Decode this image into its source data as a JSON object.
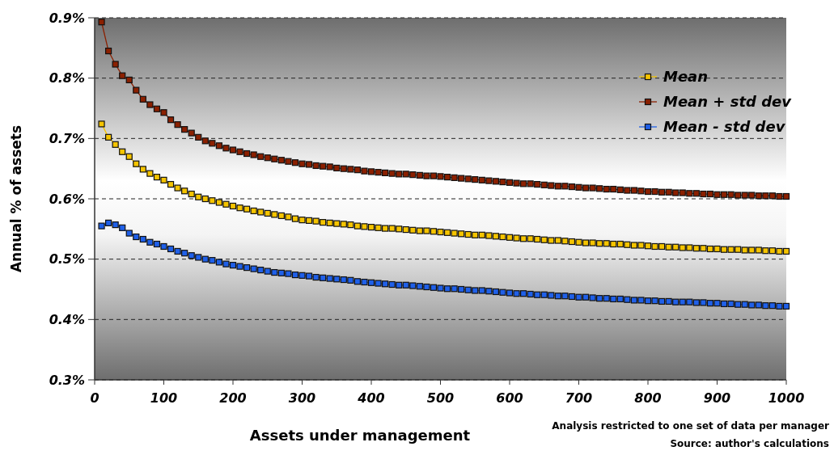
{
  "chart_data": {
    "type": "line",
    "xlabel": "Assets under management",
    "ylabel": "Annual % of assets",
    "x": [
      10,
      20,
      30,
      40,
      50,
      60,
      70,
      80,
      90,
      100,
      110,
      120,
      130,
      140,
      150,
      160,
      170,
      180,
      190,
      200,
      210,
      220,
      230,
      240,
      250,
      260,
      270,
      280,
      290,
      300,
      310,
      320,
      330,
      340,
      350,
      360,
      370,
      380,
      390,
      400,
      410,
      420,
      430,
      440,
      450,
      460,
      470,
      480,
      490,
      500,
      510,
      520,
      530,
      540,
      550,
      560,
      570,
      580,
      590,
      600,
      610,
      620,
      630,
      640,
      650,
      660,
      670,
      680,
      690,
      700,
      710,
      720,
      730,
      740,
      750,
      760,
      770,
      780,
      790,
      800,
      810,
      820,
      830,
      840,
      850,
      860,
      870,
      880,
      890,
      900,
      910,
      920,
      930,
      940,
      950,
      960,
      970,
      980,
      990,
      1000
    ],
    "series": [
      {
        "name": "Mean",
        "color": "#f5c400",
        "values": [
          0.724,
          0.702,
          0.69,
          0.678,
          0.67,
          0.658,
          0.649,
          0.642,
          0.636,
          0.631,
          0.624,
          0.618,
          0.613,
          0.608,
          0.603,
          0.6,
          0.597,
          0.594,
          0.591,
          0.588,
          0.585,
          0.583,
          0.58,
          0.578,
          0.576,
          0.574,
          0.572,
          0.57,
          0.567,
          0.565,
          0.564,
          0.563,
          0.561,
          0.56,
          0.559,
          0.558,
          0.557,
          0.555,
          0.554,
          0.553,
          0.552,
          0.551,
          0.551,
          0.55,
          0.549,
          0.548,
          0.547,
          0.547,
          0.546,
          0.545,
          0.544,
          0.543,
          0.542,
          0.541,
          0.54,
          0.54,
          0.539,
          0.538,
          0.537,
          0.536,
          0.535,
          0.534,
          0.534,
          0.533,
          0.532,
          0.531,
          0.531,
          0.53,
          0.529,
          0.528,
          0.527,
          0.527,
          0.526,
          0.526,
          0.525,
          0.525,
          0.524,
          0.523,
          0.523,
          0.522,
          0.521,
          0.521,
          0.52,
          0.52,
          0.519,
          0.519,
          0.518,
          0.518,
          0.517,
          0.517,
          0.516,
          0.516,
          0.516,
          0.515,
          0.515,
          0.515,
          0.514,
          0.514,
          0.513,
          0.513
        ]
      },
      {
        "name": "Mean + std dev",
        "color": "#8b2000",
        "values": [
          0.893,
          0.845,
          0.823,
          0.804,
          0.797,
          0.78,
          0.765,
          0.756,
          0.749,
          0.743,
          0.731,
          0.723,
          0.715,
          0.709,
          0.702,
          0.696,
          0.692,
          0.688,
          0.684,
          0.681,
          0.678,
          0.675,
          0.673,
          0.67,
          0.668,
          0.666,
          0.664,
          0.662,
          0.66,
          0.658,
          0.657,
          0.655,
          0.654,
          0.653,
          0.651,
          0.65,
          0.649,
          0.648,
          0.646,
          0.645,
          0.644,
          0.643,
          0.642,
          0.641,
          0.641,
          0.64,
          0.639,
          0.638,
          0.638,
          0.637,
          0.636,
          0.635,
          0.634,
          0.633,
          0.632,
          0.631,
          0.63,
          0.629,
          0.628,
          0.627,
          0.626,
          0.625,
          0.625,
          0.624,
          0.623,
          0.622,
          0.621,
          0.621,
          0.62,
          0.619,
          0.618,
          0.618,
          0.617,
          0.616,
          0.616,
          0.615,
          0.614,
          0.614,
          0.613,
          0.612,
          0.612,
          0.611,
          0.611,
          0.61,
          0.61,
          0.609,
          0.609,
          0.608,
          0.608,
          0.607,
          0.607,
          0.607,
          0.606,
          0.606,
          0.606,
          0.605,
          0.605,
          0.605,
          0.604,
          0.604
        ]
      },
      {
        "name": "Mean - std dev",
        "color": "#2060e8",
        "values": [
          0.555,
          0.56,
          0.557,
          0.552,
          0.543,
          0.537,
          0.533,
          0.528,
          0.525,
          0.521,
          0.517,
          0.513,
          0.51,
          0.506,
          0.503,
          0.5,
          0.498,
          0.495,
          0.492,
          0.49,
          0.488,
          0.486,
          0.484,
          0.482,
          0.48,
          0.478,
          0.477,
          0.476,
          0.474,
          0.473,
          0.472,
          0.47,
          0.469,
          0.468,
          0.467,
          0.466,
          0.465,
          0.463,
          0.462,
          0.461,
          0.46,
          0.459,
          0.458,
          0.457,
          0.457,
          0.456,
          0.455,
          0.454,
          0.453,
          0.452,
          0.451,
          0.451,
          0.45,
          0.449,
          0.448,
          0.448,
          0.447,
          0.446,
          0.445,
          0.444,
          0.443,
          0.443,
          0.442,
          0.441,
          0.441,
          0.44,
          0.439,
          0.439,
          0.438,
          0.437,
          0.437,
          0.436,
          0.435,
          0.435,
          0.434,
          0.434,
          0.433,
          0.432,
          0.432,
          0.431,
          0.431,
          0.43,
          0.43,
          0.429,
          0.429,
          0.429,
          0.428,
          0.428,
          0.427,
          0.427,
          0.426,
          0.426,
          0.425,
          0.425,
          0.424,
          0.424,
          0.423,
          0.423,
          0.422,
          0.422
        ]
      }
    ],
    "xlim": [
      0,
      1000
    ],
    "xticks": [
      0,
      100,
      200,
      300,
      400,
      500,
      600,
      700,
      800,
      900,
      1000
    ],
    "ylim": [
      0.3,
      0.9
    ],
    "yticks": [
      {
        "value": 0.3,
        "label": "0.3%"
      },
      {
        "value": 0.4,
        "label": "0.4%"
      },
      {
        "value": 0.5,
        "label": "0.5%"
      },
      {
        "value": 0.6,
        "label": "0.6%"
      },
      {
        "value": 0.7,
        "label": "0.7%"
      },
      {
        "value": 0.8,
        "label": "0.8%"
      },
      {
        "value": 0.9,
        "label": "0.9%"
      }
    ],
    "grid": "y",
    "legend": "top right",
    "marker": "square",
    "line_style": "solid",
    "annotations": [
      "Analysis restricted to one set of data per manager",
      "Source: author's calculations"
    ]
  }
}
